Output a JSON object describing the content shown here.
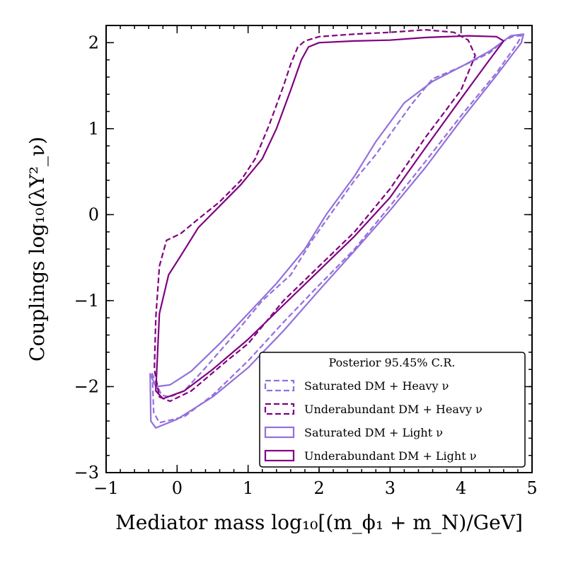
{
  "chart_data": {
    "type": "line",
    "xlabel": "Mediator mass log₁₀[(m_ϕ₁ + m_N)/GeV]",
    "ylabel": "Couplings log₁₀(λY²_ν)",
    "xlim": [
      -1,
      5
    ],
    "ylim": [
      -3,
      2.2
    ],
    "x_ticks": [
      -1,
      0,
      1,
      2,
      3,
      4,
      5
    ],
    "y_ticks": [
      -3,
      -2,
      -1,
      0,
      1,
      2
    ],
    "x_tick_labels": [
      "−1",
      "0",
      "1",
      "2",
      "3",
      "4",
      "5"
    ],
    "y_tick_labels": [
      "−3",
      "−2",
      "−1",
      "0",
      "1",
      "2"
    ],
    "legend": {
      "title": "Posterior 95.45% C.R.",
      "placement": "lower-right"
    },
    "series": [
      {
        "name": "Saturated DM + Heavy ν",
        "color": "#9370DB",
        "style": "dashed",
        "closed": true,
        "points": [
          [
            -0.35,
            -1.85
          ],
          [
            -0.33,
            -2.3
          ],
          [
            -0.25,
            -2.42
          ],
          [
            0.1,
            -2.35
          ],
          [
            0.5,
            -2.1
          ],
          [
            1.0,
            -1.7
          ],
          [
            1.5,
            -1.25
          ],
          [
            2.0,
            -0.82
          ],
          [
            2.5,
            -0.4
          ],
          [
            3.0,
            0.1
          ],
          [
            3.5,
            0.62
          ],
          [
            4.0,
            1.15
          ],
          [
            4.5,
            1.65
          ],
          [
            4.8,
            2.0
          ],
          [
            4.85,
            2.08
          ],
          [
            4.75,
            2.08
          ],
          [
            4.6,
            2.02
          ],
          [
            4.4,
            1.88
          ],
          [
            4.0,
            1.72
          ],
          [
            3.6,
            1.58
          ],
          [
            3.3,
            1.28
          ],
          [
            2.8,
            0.7
          ],
          [
            2.5,
            0.4
          ],
          [
            2.2,
            0.05
          ],
          [
            1.9,
            -0.3
          ],
          [
            1.6,
            -0.7
          ],
          [
            1.2,
            -1.0
          ],
          [
            0.8,
            -1.4
          ],
          [
            0.4,
            -1.78
          ],
          [
            0.1,
            -2.05
          ],
          [
            -0.1,
            -2.12
          ],
          [
            -0.22,
            -2.1
          ],
          [
            -0.3,
            -1.95
          ]
        ]
      },
      {
        "name": "Underabundant DM + Heavy ν",
        "color": "#800080",
        "style": "dashed",
        "closed": true,
        "points": [
          [
            -0.25,
            -2.12
          ],
          [
            -0.1,
            -2.17
          ],
          [
            0.2,
            -2.05
          ],
          [
            0.7,
            -1.7
          ],
          [
            1.0,
            -1.5
          ],
          [
            1.5,
            -1.0
          ],
          [
            2.0,
            -0.6
          ],
          [
            2.5,
            -0.2
          ],
          [
            3.0,
            0.3
          ],
          [
            3.5,
            0.9
          ],
          [
            4.0,
            1.45
          ],
          [
            4.2,
            1.85
          ],
          [
            4.1,
            2.03
          ],
          [
            3.9,
            2.12
          ],
          [
            3.5,
            2.15
          ],
          [
            3.0,
            2.12
          ],
          [
            2.5,
            2.1
          ],
          [
            2.0,
            2.07
          ],
          [
            1.8,
            2.02
          ],
          [
            1.7,
            1.95
          ],
          [
            1.6,
            1.75
          ],
          [
            1.5,
            1.5
          ],
          [
            1.3,
            1.05
          ],
          [
            1.1,
            0.65
          ],
          [
            0.9,
            0.4
          ],
          [
            0.6,
            0.15
          ],
          [
            0.3,
            -0.05
          ],
          [
            0.05,
            -0.22
          ],
          [
            -0.15,
            -0.3
          ],
          [
            -0.25,
            -0.6
          ],
          [
            -0.3,
            -1.2
          ],
          [
            -0.32,
            -1.8
          ]
        ]
      },
      {
        "name": "Saturated DM + Light ν",
        "color": "#9370DB",
        "style": "solid",
        "closed": true,
        "points": [
          [
            -0.38,
            -1.85
          ],
          [
            -0.37,
            -2.4
          ],
          [
            -0.3,
            -2.48
          ],
          [
            0.0,
            -2.38
          ],
          [
            0.5,
            -2.12
          ],
          [
            1.0,
            -1.78
          ],
          [
            1.5,
            -1.35
          ],
          [
            2.0,
            -0.88
          ],
          [
            2.5,
            -0.42
          ],
          [
            3.0,
            0.05
          ],
          [
            3.5,
            0.55
          ],
          [
            4.0,
            1.1
          ],
          [
            4.5,
            1.62
          ],
          [
            4.85,
            2.0
          ],
          [
            4.88,
            2.1
          ],
          [
            4.7,
            2.08
          ],
          [
            4.4,
            1.9
          ],
          [
            4.0,
            1.72
          ],
          [
            3.6,
            1.55
          ],
          [
            3.2,
            1.3
          ],
          [
            2.8,
            0.85
          ],
          [
            2.5,
            0.45
          ],
          [
            2.1,
            0.0
          ],
          [
            1.8,
            -0.4
          ],
          [
            1.4,
            -0.8
          ],
          [
            1.0,
            -1.15
          ],
          [
            0.6,
            -1.5
          ],
          [
            0.2,
            -1.82
          ],
          [
            -0.1,
            -1.98
          ],
          [
            -0.3,
            -2.0
          ]
        ]
      },
      {
        "name": "Underabundant DM + Light ν",
        "color": "#800080",
        "style": "solid",
        "closed": true,
        "points": [
          [
            -0.3,
            -2.05
          ],
          [
            -0.2,
            -2.14
          ],
          [
            0.1,
            -2.05
          ],
          [
            0.5,
            -1.8
          ],
          [
            1.0,
            -1.45
          ],
          [
            1.5,
            -1.05
          ],
          [
            2.0,
            -0.65
          ],
          [
            2.5,
            -0.25
          ],
          [
            3.0,
            0.2
          ],
          [
            3.5,
            0.78
          ],
          [
            4.0,
            1.35
          ],
          [
            4.4,
            1.8
          ],
          [
            4.6,
            2.02
          ],
          [
            4.5,
            2.07
          ],
          [
            4.1,
            2.08
          ],
          [
            3.5,
            2.06
          ],
          [
            3.0,
            2.03
          ],
          [
            2.5,
            2.02
          ],
          [
            2.0,
            2.0
          ],
          [
            1.85,
            1.95
          ],
          [
            1.75,
            1.8
          ],
          [
            1.6,
            1.45
          ],
          [
            1.4,
            1.0
          ],
          [
            1.2,
            0.65
          ],
          [
            0.9,
            0.35
          ],
          [
            0.6,
            0.1
          ],
          [
            0.3,
            -0.15
          ],
          [
            0.05,
            -0.48
          ],
          [
            -0.12,
            -0.7
          ],
          [
            -0.25,
            -1.15
          ],
          [
            -0.28,
            -1.7
          ]
        ]
      }
    ]
  }
}
